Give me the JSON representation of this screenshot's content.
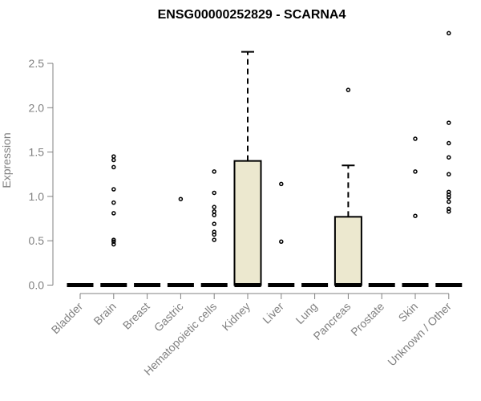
{
  "chart_data": {
    "type": "box",
    "title": "ENSG00000252829 - SCARNA4",
    "ylabel": "Expression",
    "xlabel": "",
    "ylim": [
      0,
      2.8
    ],
    "yticks": [
      "0.0",
      "0.5",
      "1.0",
      "1.5",
      "2.0",
      "2.5"
    ],
    "categories": [
      "Bladder",
      "Brain",
      "Breast",
      "Gastric",
      "Hematopoietic cells",
      "Kidney",
      "Liver",
      "Lung",
      "Pancreas",
      "Prostate",
      "Skin",
      "Unknown / Other"
    ],
    "boxes": [
      {
        "q1": 0,
        "median": 0,
        "q3": 0,
        "whisker_low": 0,
        "whisker_high": 0,
        "outliers": []
      },
      {
        "q1": 0,
        "median": 0,
        "q3": 0,
        "whisker_low": 0,
        "whisker_high": 0,
        "outliers": [
          0.46,
          0.49,
          0.51,
          0.81,
          0.93,
          1.08,
          1.33,
          1.41,
          1.45
        ]
      },
      {
        "q1": 0,
        "median": 0,
        "q3": 0,
        "whisker_low": 0,
        "whisker_high": 0,
        "outliers": []
      },
      {
        "q1": 0,
        "median": 0,
        "q3": 0,
        "whisker_low": 0,
        "whisker_high": 0,
        "outliers": [
          0.97
        ]
      },
      {
        "q1": 0,
        "median": 0,
        "q3": 0,
        "whisker_low": 0,
        "whisker_high": 0,
        "outliers": [
          0.51,
          0.57,
          0.6,
          0.69,
          0.79,
          0.83,
          0.88,
          1.04,
          1.28
        ]
      },
      {
        "q1": 0,
        "median": 0,
        "q3": 1.4,
        "whisker_low": 0,
        "whisker_high": 2.63,
        "outliers": []
      },
      {
        "q1": 0,
        "median": 0,
        "q3": 0,
        "whisker_low": 0,
        "whisker_high": 0,
        "outliers": [
          0.49,
          1.14
        ]
      },
      {
        "q1": 0,
        "median": 0,
        "q3": 0,
        "whisker_low": 0,
        "whisker_high": 0,
        "outliers": []
      },
      {
        "q1": 0,
        "median": 0,
        "q3": 0.77,
        "whisker_low": 0,
        "whisker_high": 1.35,
        "outliers": [
          2.2
        ]
      },
      {
        "q1": 0,
        "median": 0,
        "q3": 0,
        "whisker_low": 0,
        "whisker_high": 0,
        "outliers": []
      },
      {
        "q1": 0,
        "median": 0,
        "q3": 0,
        "whisker_low": 0,
        "whisker_high": 0,
        "outliers": [
          0.78,
          1.28,
          1.65
        ]
      },
      {
        "q1": 0,
        "median": 0,
        "q3": 0,
        "whisker_low": 0,
        "whisker_high": 0,
        "outliers": [
          0.83,
          0.86,
          0.94,
          0.99,
          1.02,
          1.05,
          1.25,
          1.44,
          1.6,
          1.83,
          2.84
        ]
      }
    ],
    "box_fill": "#ece8cf",
    "box_stroke": "#000000",
    "axis_color": "#808080",
    "grid": false,
    "legend": "none"
  }
}
